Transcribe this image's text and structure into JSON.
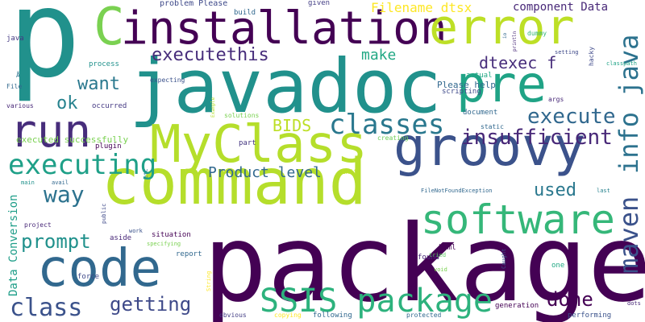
{
  "words": [
    {
      "text": "package",
      "color": "#440154",
      "size": 132
    },
    {
      "text": "javadoc",
      "color": "#21918c",
      "size": 92
    },
    {
      "text": "command",
      "color": "#b5de2b",
      "size": 78
    },
    {
      "text": "p",
      "color": "#21918c",
      "size": 150
    },
    {
      "text": "installation",
      "color": "#440154",
      "size": 56
    },
    {
      "text": "error",
      "color": "#bddf26",
      "size": 60
    },
    {
      "text": "groovy",
      "color": "#3b528b",
      "size": 66
    },
    {
      "text": "MyClass",
      "color": "#b5de2b",
      "size": 64
    },
    {
      "text": "pre",
      "color": "#20a386",
      "size": 62
    },
    {
      "text": "code",
      "color": "#31688e",
      "size": 64
    },
    {
      "text": "run",
      "color": "#472d7b",
      "size": 56
    },
    {
      "text": "software",
      "color": "#35b779",
      "size": 50
    },
    {
      "text": "C",
      "color": "#7ad151",
      "size": 64
    },
    {
      "text": "SSIS package",
      "color": "#2db27d",
      "size": 40
    },
    {
      "text": "executing",
      "color": "#1fa088",
      "size": 34
    },
    {
      "text": "classes",
      "color": "#2a788e",
      "size": 34
    },
    {
      "text": "info java",
      "color": "#2c728e",
      "size": 32
    },
    {
      "text": "maven",
      "color": "#3b528b",
      "size": 32
    },
    {
      "text": "insufficient",
      "color": "#482878",
      "size": 26
    },
    {
      "text": "execute",
      "color": "#31688e",
      "size": 26
    },
    {
      "text": "executethis",
      "color": "#472d7b",
      "size": 22
    },
    {
      "text": "class",
      "color": "#3b528b",
      "size": 30
    },
    {
      "text": "getting",
      "color": "#3e4989",
      "size": 24
    },
    {
      "text": "done",
      "color": "#440154",
      "size": 24
    },
    {
      "text": "way",
      "color": "#2c728e",
      "size": 28
    },
    {
      "text": "prompt",
      "color": "#21918c",
      "size": 24
    },
    {
      "text": "used",
      "color": "#2a788e",
      "size": 22
    },
    {
      "text": "Product level",
      "color": "#31688e",
      "size": 18
    },
    {
      "text": "BIDS",
      "color": "#bddf26",
      "size": 20
    },
    {
      "text": "want",
      "color": "#2a788e",
      "size": 22
    },
    {
      "text": "ok",
      "color": "#26828e",
      "size": 22
    },
    {
      "text": "dtexec f",
      "color": "#472d7b",
      "size": 20
    },
    {
      "text": "make",
      "color": "#22a884",
      "size": 18
    },
    {
      "text": "Filename dtsx",
      "color": "#fde725",
      "size": 16
    },
    {
      "text": "component Data",
      "color": "#482878",
      "size": 14
    },
    {
      "text": "Data Conversion",
      "color": "#1f9e89",
      "size": 14
    },
    {
      "text": "executed successfully",
      "color": "#7ad151",
      "size": 11
    },
    {
      "text": "Please help",
      "color": "#31688e",
      "size": 11
    },
    {
      "text": "problem Please",
      "color": "#3e4989",
      "size": 10
    },
    {
      "text": "build",
      "color": "#31688e",
      "size": 9
    },
    {
      "text": "given",
      "color": "#433e85",
      "size": 9
    },
    {
      "text": "java",
      "color": "#443983",
      "size": 9
    },
    {
      "text": "File",
      "color": "#31688e",
      "size": 8
    },
    {
      "text": "various",
      "color": "#482878",
      "size": 8
    },
    {
      "text": "process",
      "color": "#21918c",
      "size": 9
    },
    {
      "text": "occurred",
      "color": "#443983",
      "size": 9
    },
    {
      "text": "expecting",
      "color": "#3b528b",
      "size": 8
    },
    {
      "text": "Å",
      "color": "#2c728e",
      "size": 8
    },
    {
      "text": "actual",
      "color": "#22a884",
      "size": 9
    },
    {
      "text": "scripting",
      "color": "#3e4989",
      "size": 9
    },
    {
      "text": "document",
      "color": "#31688e",
      "size": 9
    },
    {
      "text": "solutions",
      "color": "#7ad151",
      "size": 8
    },
    {
      "text": "Example",
      "color": "#b5de2b",
      "size": 6
    },
    {
      "text": "static",
      "color": "#31688e",
      "size": 8
    },
    {
      "text": "creating",
      "color": "#6ece58",
      "size": 8
    },
    {
      "text": "args",
      "color": "#482878",
      "size": 8
    },
    {
      "text": "plugin",
      "color": "#440154",
      "size": 9
    },
    {
      "text": "part",
      "color": "#453781",
      "size": 9
    },
    {
      "text": "etc",
      "color": "#26828e",
      "size": 7
    },
    {
      "text": "Exit",
      "color": "#bddf26",
      "size": 8
    },
    {
      "text": "FileNotFoundException",
      "color": "#31688e",
      "size": 7
    },
    {
      "text": "last",
      "color": "#26828e",
      "size": 7
    },
    {
      "text": "main",
      "color": "#21918c",
      "size": 7
    },
    {
      "text": "avail",
      "color": "#31688e",
      "size": 7
    },
    {
      "text": "project",
      "color": "#482878",
      "size": 8
    },
    {
      "text": "public",
      "color": "#3e4989",
      "size": 7
    },
    {
      "text": "work",
      "color": "#3b528b",
      "size": 7
    },
    {
      "text": "situation",
      "color": "#440154",
      "size": 9
    },
    {
      "text": "aside",
      "color": "#482878",
      "size": 9
    },
    {
      "text": "specifying",
      "color": "#7ad151",
      "size": 7
    },
    {
      "text": "report",
      "color": "#31688e",
      "size": 9
    },
    {
      "text": "String",
      "color": "#fde725",
      "size": 7
    },
    {
      "text": "force",
      "color": "#3e4989",
      "size": 9
    },
    {
      "text": "obvious",
      "color": "#433e85",
      "size": 8
    },
    {
      "text": "copying",
      "color": "#fde725",
      "size": 8
    },
    {
      "text": "following",
      "color": "#31688e",
      "size": 9
    },
    {
      "text": "protected",
      "color": "#31688e",
      "size": 8
    },
    {
      "text": "generation",
      "color": "#440154",
      "size": 9
    },
    {
      "text": "performing",
      "color": "#3b528b",
      "size": 9
    },
    {
      "text": "dots",
      "color": "#482878",
      "size": 7
    },
    {
      "text": "html",
      "color": "#440154",
      "size": 9
    },
    {
      "text": "found",
      "color": "#482878",
      "size": 9
    },
    {
      "text": "tried",
      "color": "#5ec962",
      "size": 7
    },
    {
      "text": "void",
      "color": "#7ad151",
      "size": 7
    },
    {
      "text": "cd",
      "color": "#440154",
      "size": 9
    },
    {
      "text": "one",
      "color": "#22a884",
      "size": 9
    },
    {
      "text": "Caught",
      "color": "#3b528b",
      "size": 7
    },
    {
      "text": "dummy",
      "color": "#35b779",
      "size": 8
    },
    {
      "text": "hacky",
      "color": "#3e4989",
      "size": 8
    },
    {
      "text": "io",
      "color": "#31688e",
      "size": 6
    },
    {
      "text": "println",
      "color": "#482878",
      "size": 6
    },
    {
      "text": "setting",
      "color": "#3e4989",
      "size": 7
    },
    {
      "text": "classpath",
      "color": "#20a386",
      "size": 7
    }
  ]
}
